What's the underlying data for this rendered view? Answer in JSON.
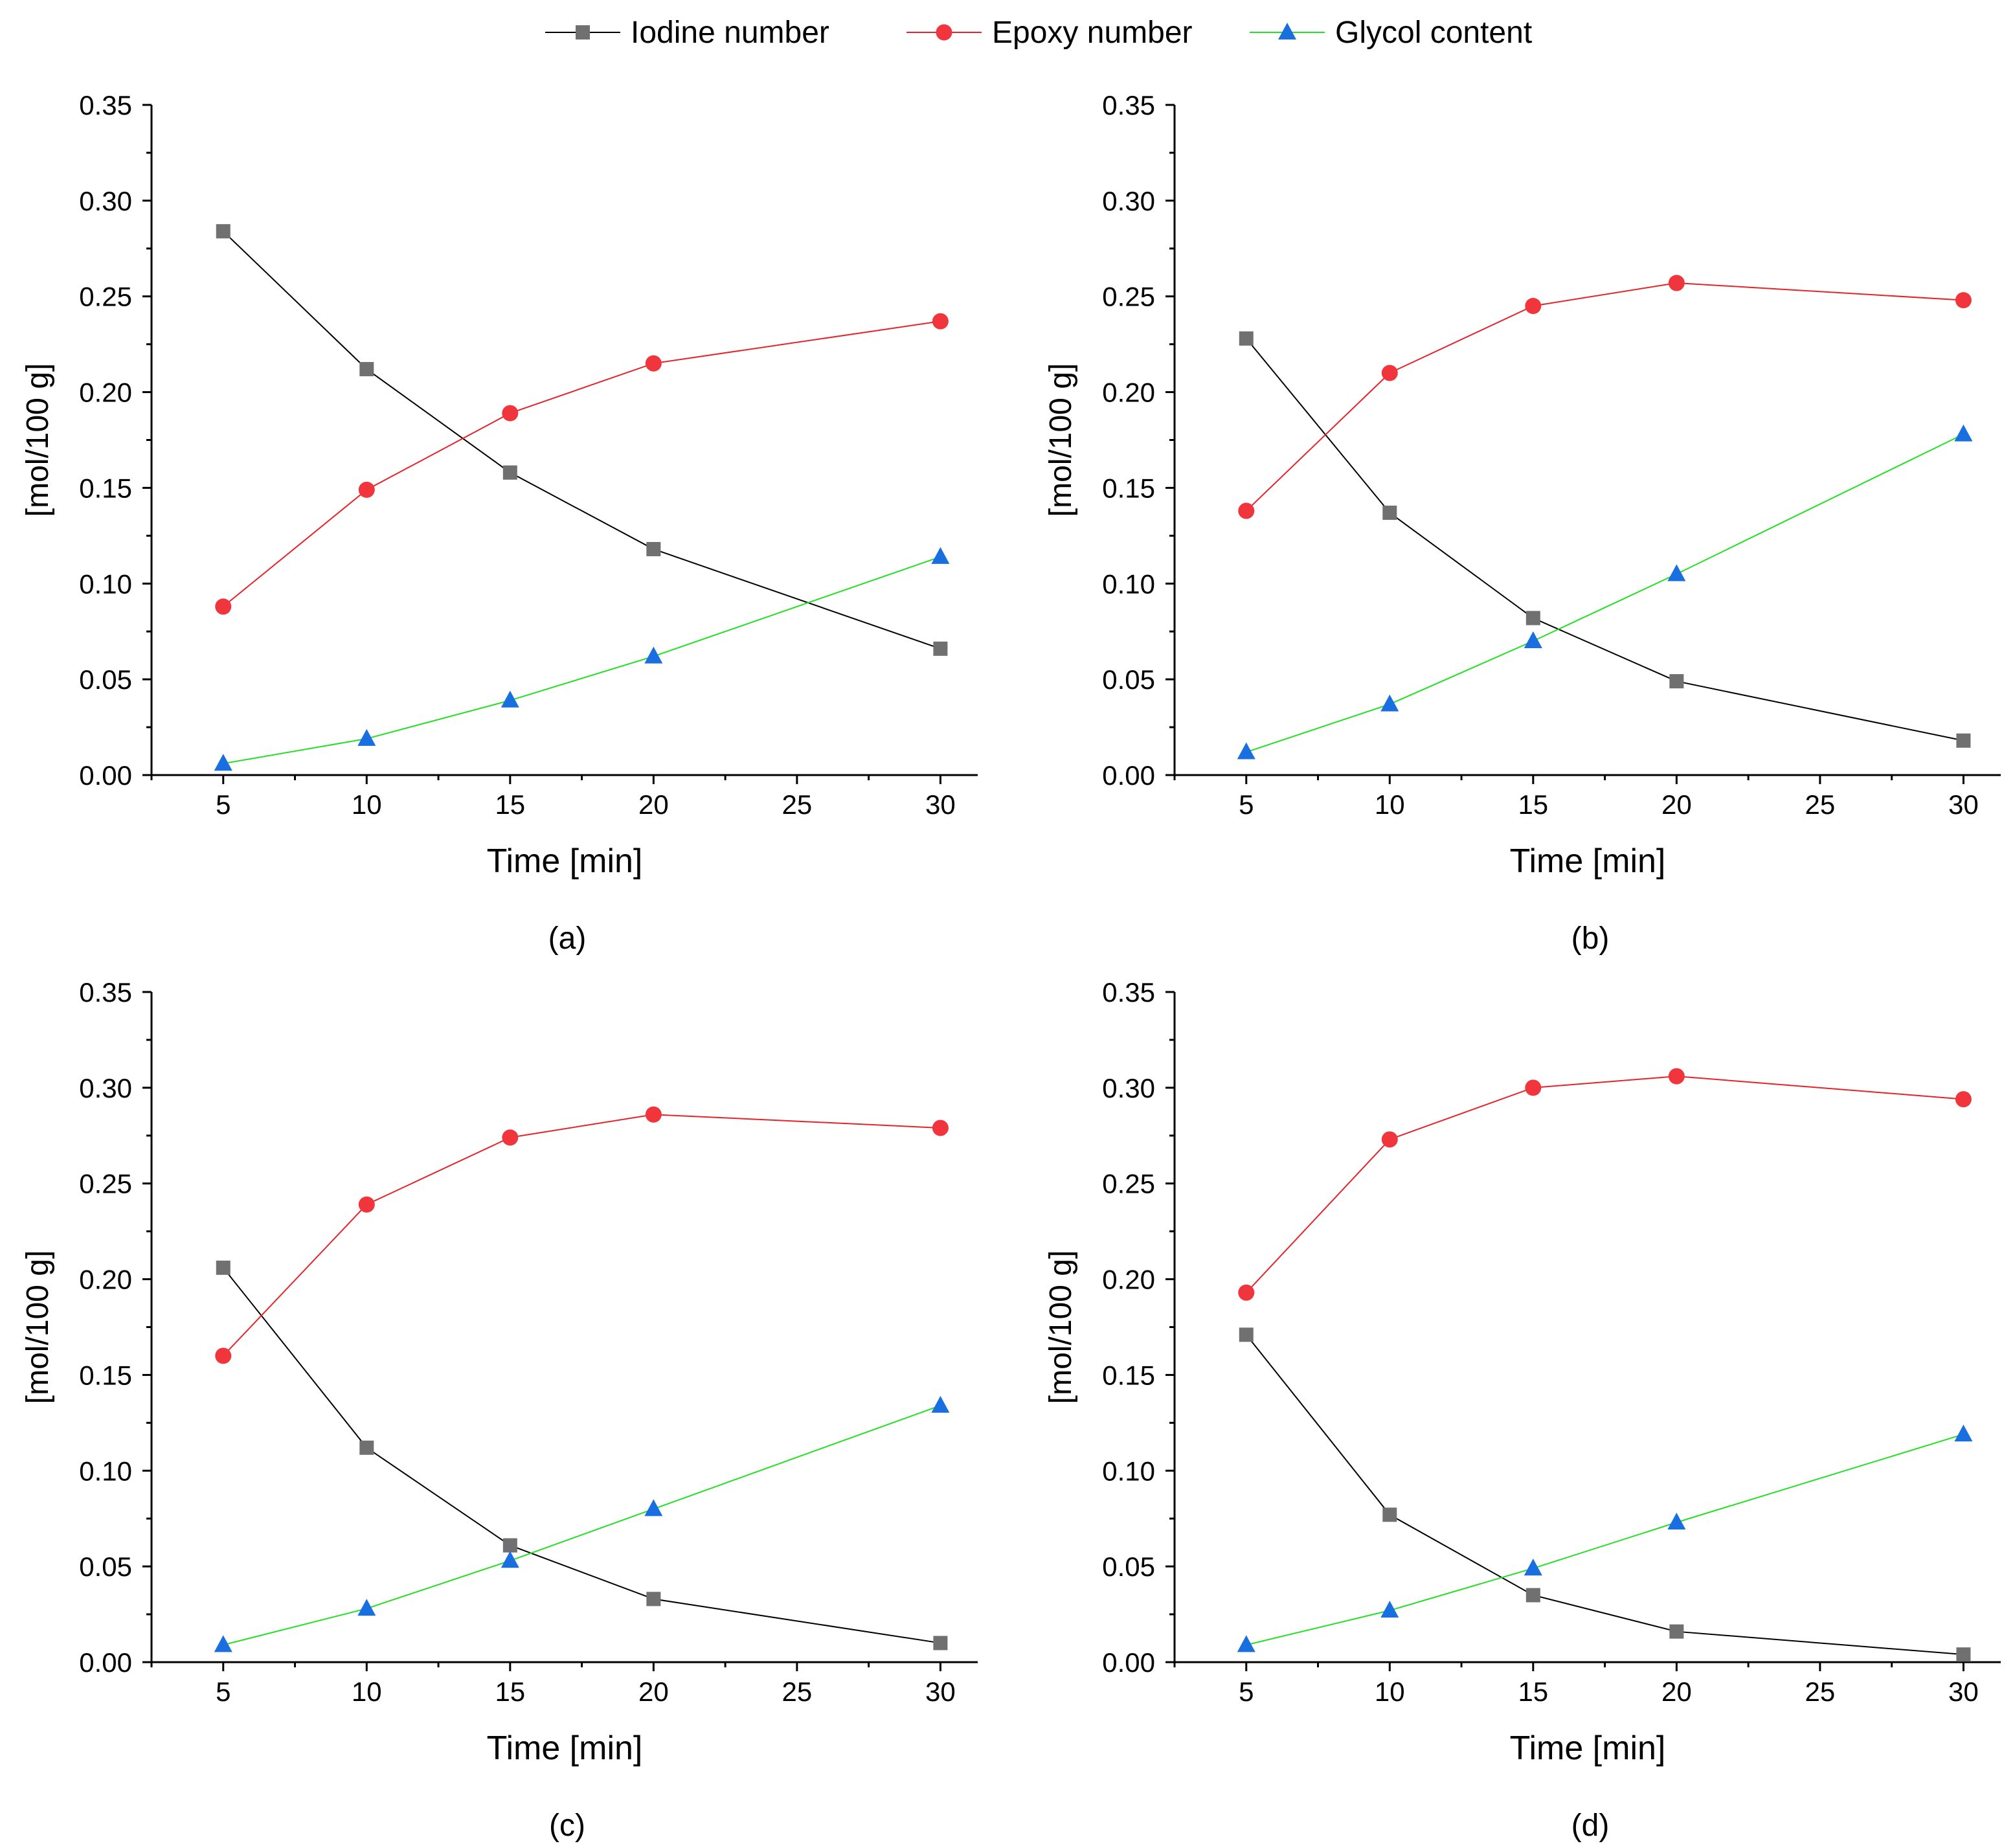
{
  "legend": {
    "items": [
      {
        "label": "Iodine number",
        "color": "#000000",
        "marker_color": "#707070",
        "marker": "square"
      },
      {
        "label": "Epoxy  number",
        "color": "#e8222a",
        "marker_color": "#f0353d",
        "marker": "circle"
      },
      {
        "label": "Glycol content",
        "color": "#22e022",
        "marker_color": "#1a6fe0",
        "marker": "triangle"
      }
    ]
  },
  "chart_data": [
    {
      "type": "line",
      "caption": "(a)",
      "xlabel": "Time [min]",
      "ylabel": "[mol/100 g]",
      "xlim": [
        2.5,
        31.3
      ],
      "ylim": [
        0,
        0.35
      ],
      "x_ticks": [
        "5",
        "10",
        "15",
        "20",
        "25",
        "30"
      ],
      "y_ticks": [
        "0.00",
        "0.05",
        "0.10",
        "0.15",
        "0.20",
        "0.25",
        "0.30",
        "0.35"
      ],
      "x": [
        5,
        10,
        15,
        20,
        30
      ],
      "series": [
        {
          "name": "Iodine number",
          "values": [
            0.284,
            0.212,
            0.158,
            0.118,
            0.066
          ]
        },
        {
          "name": "Epoxy  number",
          "values": [
            0.088,
            0.149,
            0.189,
            0.215,
            0.237
          ]
        },
        {
          "name": "Glycol content",
          "values": [
            0.006,
            0.019,
            0.039,
            0.062,
            0.114
          ]
        }
      ]
    },
    {
      "type": "line",
      "caption": "(b)",
      "xlabel": "Time [min]",
      "ylabel": "[mol/100 g]",
      "xlim": [
        2.5,
        31.3
      ],
      "ylim": [
        0,
        0.35
      ],
      "x_ticks": [
        "5",
        "10",
        "15",
        "20",
        "25",
        "30"
      ],
      "y_ticks": [
        "0.00",
        "0.05",
        "0.10",
        "0.15",
        "0.20",
        "0.25",
        "0.30",
        "0.35"
      ],
      "x": [
        5,
        10,
        15,
        20,
        30
      ],
      "series": [
        {
          "name": "Iodine number",
          "values": [
            0.228,
            0.137,
            0.082,
            0.049,
            0.018
          ]
        },
        {
          "name": "Epoxy  number",
          "values": [
            0.138,
            0.21,
            0.245,
            0.257,
            0.248
          ]
        },
        {
          "name": "Glycol content",
          "values": [
            0.012,
            0.037,
            0.07,
            0.105,
            0.178
          ]
        }
      ]
    },
    {
      "type": "line",
      "caption": "(c)",
      "xlabel": "Time [min]",
      "ylabel": "[mol/100 g]",
      "xlim": [
        2.5,
        31.3
      ],
      "ylim": [
        0,
        0.35
      ],
      "x_ticks": [
        "5",
        "10",
        "15",
        "20",
        "25",
        "30"
      ],
      "y_ticks": [
        "0.00",
        "0.05",
        "0.10",
        "0.15",
        "0.20",
        "0.25",
        "0.30",
        "0.35"
      ],
      "x": [
        5,
        10,
        15,
        20,
        30
      ],
      "series": [
        {
          "name": "Iodine number",
          "values": [
            0.206,
            0.112,
            0.061,
            0.033,
            0.01
          ]
        },
        {
          "name": "Epoxy  number",
          "values": [
            0.16,
            0.239,
            0.274,
            0.286,
            0.279
          ]
        },
        {
          "name": "Glycol content",
          "values": [
            0.009,
            0.028,
            0.053,
            0.08,
            0.134
          ]
        }
      ]
    },
    {
      "type": "line",
      "caption": "(d)",
      "xlabel": "Time [min]",
      "ylabel": "[mol/100 g]",
      "xlim": [
        2.5,
        31.3
      ],
      "ylim": [
        0,
        0.35
      ],
      "x_ticks": [
        "5",
        "10",
        "15",
        "20",
        "25",
        "30"
      ],
      "y_ticks": [
        "0.00",
        "0.05",
        "0.10",
        "0.15",
        "0.20",
        "0.25",
        "0.30",
        "0.35"
      ],
      "x": [
        5,
        10,
        15,
        20,
        30
      ],
      "series": [
        {
          "name": "Iodine number",
          "values": [
            0.171,
            0.077,
            0.035,
            0.016,
            0.004
          ]
        },
        {
          "name": "Epoxy  number",
          "values": [
            0.193,
            0.273,
            0.3,
            0.306,
            0.294
          ]
        },
        {
          "name": "Glycol content",
          "values": [
            0.009,
            0.027,
            0.049,
            0.073,
            0.119
          ]
        }
      ]
    }
  ]
}
